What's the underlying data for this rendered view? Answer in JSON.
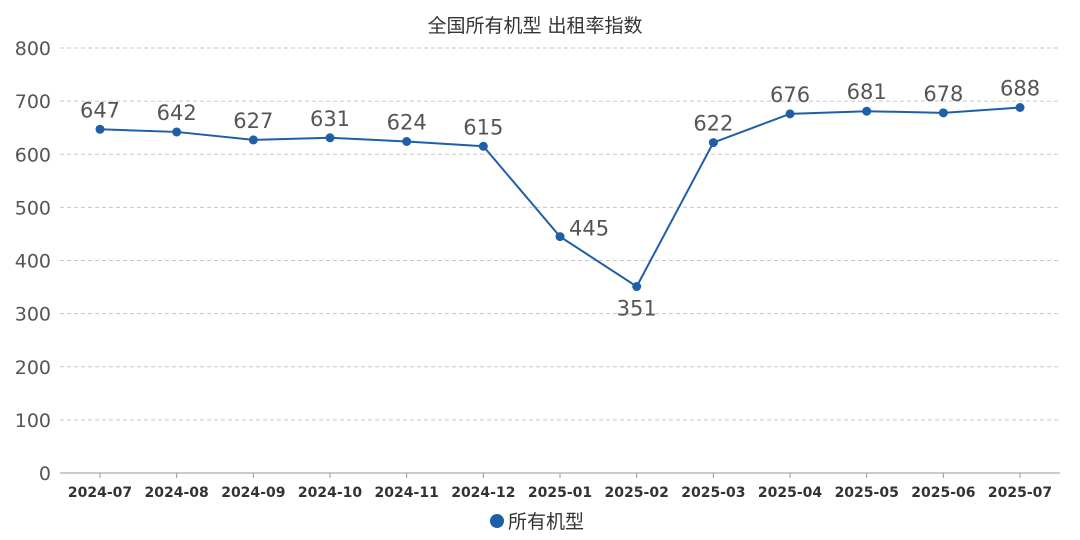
{
  "chart_data": {
    "type": "line",
    "title": "全国所有机型 出租率指数",
    "categories": [
      "2024-07",
      "2024-08",
      "2024-09",
      "2024-10",
      "2024-11",
      "2024-12",
      "2025-01",
      "2025-02",
      "2025-03",
      "2025-04",
      "2025-05",
      "2025-06",
      "2025-07"
    ],
    "series": [
      {
        "name": "所有机型",
        "color": "#1f5fa8",
        "values": [
          647,
          642,
          627,
          631,
          624,
          615,
          445,
          351,
          622,
          676,
          681,
          678,
          688
        ],
        "label_positions": [
          "above",
          "above",
          "above",
          "above",
          "above",
          "above",
          "right",
          "below",
          "above",
          "above",
          "above",
          "above",
          "above"
        ]
      }
    ],
    "yticks": [
      0,
      100,
      200,
      300,
      400,
      500,
      600,
      700,
      800
    ],
    "ylim": [
      0,
      800
    ],
    "grid": true,
    "legend_position": "bottom-center"
  }
}
